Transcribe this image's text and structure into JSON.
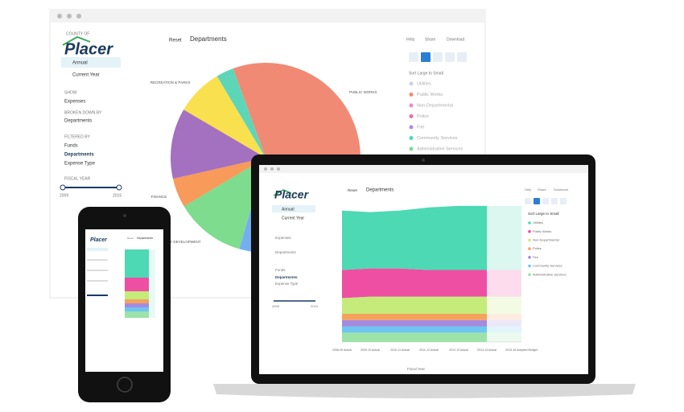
{
  "desktop": {
    "brand_caption": "COUNTY OF",
    "brand": "Placer",
    "views": [
      "Annual",
      "Current Year"
    ],
    "show_label": "SHOW",
    "show": "Expenses",
    "broken_label": "BROKEN DOWN BY",
    "broken": "Departments",
    "filtered_label": "FILTERED BY",
    "filters": [
      "Funds",
      "Departments",
      "Expense Type"
    ],
    "year_label": "FISCAL YEAR",
    "year_range": [
      "2009",
      "2015"
    ],
    "reset": "Reset",
    "title": "Departments",
    "menu": [
      "Help",
      "Share",
      "Download"
    ],
    "sort": "Sort Large to Small",
    "legend": [
      "Utilities",
      "Public Works",
      "Non-Departmental",
      "Police",
      "Fire",
      "Community Services",
      "Administrative Services"
    ],
    "legend_colors": [
      "#c9d3e8",
      "#f08a74",
      "#e58fd0",
      "#f06aa8",
      "#b48ad8",
      "#4cd9b4",
      "#7ddc8e"
    ],
    "chart_data": {
      "type": "pie",
      "categories": [
        "PUBLIC WORKS",
        null,
        "COMMUNITY DEVELOPMENT",
        "FINANCE",
        null,
        "RECREATION & PARKS",
        null
      ],
      "values": [
        40,
        20,
        12,
        5,
        12,
        8,
        3
      ],
      "colors": [
        "#f08a74",
        "#74aef0",
        "#7ddc8e",
        "#f79a5a",
        "#a470c0",
        "#f9e04f",
        "#5dd6b8"
      ]
    }
  },
  "laptop": {
    "brand": "Placer",
    "views": [
      "Annual",
      "Current Year"
    ],
    "show": "Expenses",
    "broken": "Departments",
    "filters": [
      "Funds",
      "Departments",
      "Expense Type"
    ],
    "year_range": [
      "2009",
      "2015"
    ],
    "reset": "Reset",
    "title": "Departments",
    "menu": [
      "Help",
      "Share",
      "Download"
    ],
    "sort": "Sort Large to Small",
    "x_label": "Fiscal Year",
    "chart_data": {
      "type": "area",
      "stacked": true,
      "categories": [
        "2008-09 Actual",
        "2009-10 Actual",
        "2010-11 Actual",
        "2011-12 Actual",
        "2012-13 Actual",
        "2013-14 Actual",
        "2015-16 Adopted Budget"
      ],
      "ylim": [
        0,
        90
      ],
      "series": [
        {
          "name": "Utilities",
          "color": "#4cd9b4",
          "values": [
            38,
            36,
            37,
            40,
            41,
            41,
            41
          ]
        },
        {
          "name": "Public Works",
          "color": "#ee4fa3",
          "values": [
            18,
            18,
            18,
            17,
            17,
            17,
            17
          ]
        },
        {
          "name": "Non-Departmental",
          "color": "#c5ec7a",
          "values": [
            10,
            11,
            11,
            11,
            11,
            11,
            11
          ]
        },
        {
          "name": "Police",
          "color": "#f5a25d",
          "values": [
            4,
            4,
            4,
            4,
            4,
            4,
            4
          ]
        },
        {
          "name": "Fire",
          "color": "#a58ae0",
          "values": [
            4,
            4,
            4,
            4,
            4,
            4,
            4
          ]
        },
        {
          "name": "Community Services",
          "color": "#6ec6f0",
          "values": [
            4,
            4,
            4,
            4,
            4,
            4,
            4
          ]
        },
        {
          "name": "Administrative Services",
          "color": "#9be3a8",
          "values": [
            6,
            6,
            6,
            6,
            6,
            6,
            6
          ]
        }
      ]
    }
  },
  "phone": {
    "brand": "Placer",
    "reset": "Reset",
    "title": "Departments"
  }
}
